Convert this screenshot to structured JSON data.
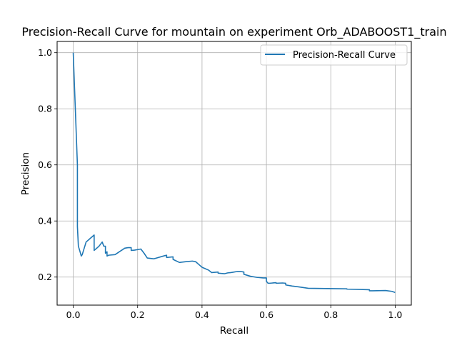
{
  "chart_data": {
    "type": "line",
    "title": "Precision-Recall Curve for mountain on experiment Orb_ADABOOST1_train",
    "xlabel": "Recall",
    "ylabel": "Precision",
    "xlim": [
      -0.05,
      1.05
    ],
    "ylim": [
      0.1,
      1.04
    ],
    "xticks": [
      0.0,
      0.2,
      0.4,
      0.6,
      0.8,
      1.0
    ],
    "xtick_labels": [
      "0.0",
      "0.2",
      "0.4",
      "0.6",
      "0.8",
      "1.0"
    ],
    "yticks": [
      0.2,
      0.4,
      0.6,
      0.8,
      1.0
    ],
    "ytick_labels": [
      "0.2",
      "0.4",
      "0.6",
      "0.8",
      "1.0"
    ],
    "grid": true,
    "legend_position": "top-right",
    "series": [
      {
        "name": "Precision-Recall Curve",
        "color": "#1f77b4",
        "x": [
          0.0,
          0.013,
          0.013,
          0.016,
          0.02,
          0.025,
          0.028,
          0.032,
          0.04,
          0.05,
          0.065,
          0.065,
          0.07,
          0.08,
          0.09,
          0.095,
          0.1,
          0.1,
          0.105,
          0.105,
          0.11,
          0.13,
          0.16,
          0.17,
          0.18,
          0.18,
          0.19,
          0.21,
          0.22,
          0.23,
          0.25,
          0.28,
          0.29,
          0.29,
          0.31,
          0.31,
          0.33,
          0.35,
          0.37,
          0.38,
          0.39,
          0.4,
          0.41,
          0.42,
          0.43,
          0.45,
          0.45,
          0.47,
          0.48,
          0.49,
          0.51,
          0.52,
          0.53,
          0.53,
          0.55,
          0.57,
          0.59,
          0.6,
          0.6,
          0.605,
          0.61,
          0.63,
          0.63,
          0.65,
          0.66,
          0.66,
          0.68,
          0.7,
          0.73,
          0.85,
          0.85,
          0.92,
          0.92,
          0.93,
          0.97,
          0.99,
          1.0
        ],
        "y": [
          1.0,
          0.6,
          0.38,
          0.31,
          0.295,
          0.275,
          0.28,
          0.295,
          0.325,
          0.335,
          0.35,
          0.295,
          0.3,
          0.31,
          0.325,
          0.31,
          0.31,
          0.285,
          0.29,
          0.275,
          0.278,
          0.28,
          0.303,
          0.305,
          0.305,
          0.295,
          0.296,
          0.3,
          0.285,
          0.268,
          0.265,
          0.275,
          0.278,
          0.27,
          0.272,
          0.263,
          0.252,
          0.255,
          0.257,
          0.255,
          0.245,
          0.235,
          0.23,
          0.225,
          0.216,
          0.218,
          0.214,
          0.212,
          0.215,
          0.216,
          0.22,
          0.22,
          0.218,
          0.21,
          0.203,
          0.199,
          0.197,
          0.197,
          0.185,
          0.178,
          0.178,
          0.18,
          0.178,
          0.179,
          0.178,
          0.172,
          0.168,
          0.165,
          0.16,
          0.158,
          0.157,
          0.155,
          0.151,
          0.151,
          0.152,
          0.149,
          0.145
        ]
      }
    ]
  }
}
